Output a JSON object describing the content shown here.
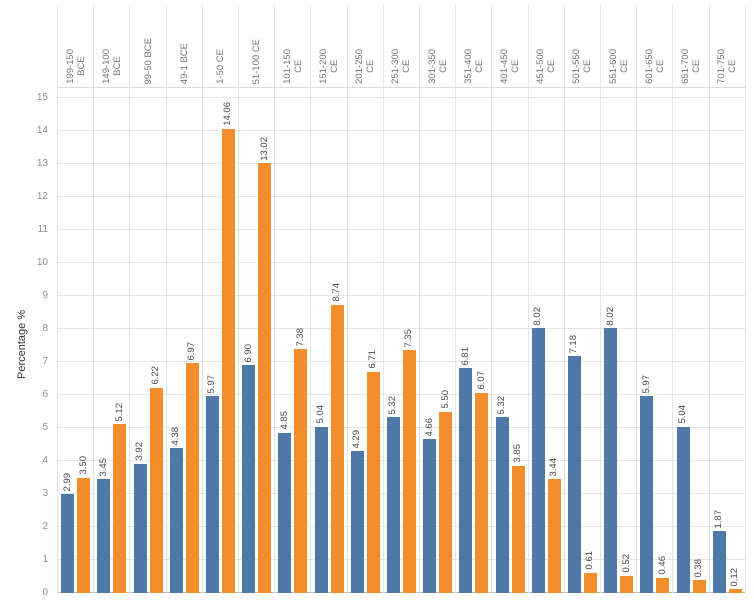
{
  "chart_data": {
    "type": "bar",
    "title": "",
    "ylabel": "Percentage %",
    "xlabel": "",
    "ylim": [
      0,
      15
    ],
    "yticks": [
      0,
      1,
      2,
      3,
      4,
      5,
      6,
      7,
      8,
      9,
      10,
      11,
      12,
      13,
      14,
      15
    ],
    "grid": true,
    "legend": "none",
    "category_labels_position": "top",
    "label_rotation_degrees": 90,
    "value_label_format": "2-decimals",
    "categories": [
      "199-150 BCE",
      "149-100 BCE",
      "99-50 BCE",
      "49-1 BCE",
      "1-50 CE",
      "51-100 CE",
      "101-150 CE",
      "151-200 CE",
      "201-250 CE",
      "251-300 CE",
      "301-350 CE",
      "351-400 CE",
      "401-450 CE",
      "451-500 CE",
      "501-550 CE",
      "551-600 CE",
      "601-650 CE",
      "651-700 CE",
      "701-750 CE"
    ],
    "series": [
      {
        "name": "blue",
        "color": "#4e79a7",
        "values": [
          2.99,
          3.45,
          3.92,
          4.38,
          5.97,
          6.9,
          4.85,
          5.04,
          4.29,
          5.32,
          4.66,
          6.81,
          5.32,
          8.02,
          7.18,
          8.02,
          5.97,
          5.04,
          1.87
        ]
      },
      {
        "name": "orange",
        "color": "#f28e2b",
        "values": [
          3.5,
          5.12,
          6.22,
          6.97,
          14.06,
          13.02,
          7.38,
          8.74,
          6.71,
          7.35,
          5.5,
          6.07,
          3.85,
          3.44,
          0.61,
          0.52,
          0.46,
          0.38,
          0.12
        ]
      }
    ]
  }
}
